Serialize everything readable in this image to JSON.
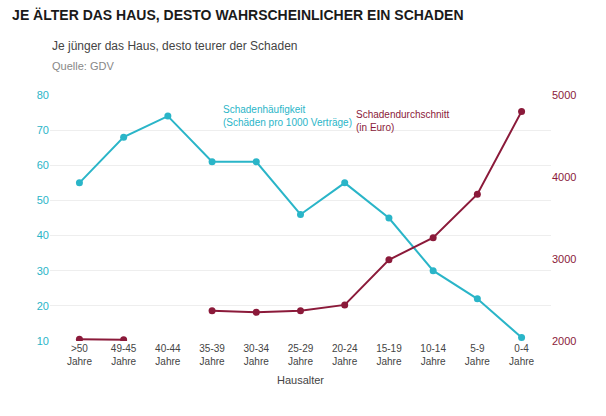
{
  "chart_data": {
    "type": "line",
    "title": "JE ÄLTER DAS HAUS, DESTO WAHRSCHEINLICHER EIN SCHADEN",
    "subtitle": "Je jünger das Haus, desto teurer der Schaden",
    "source": "Quelle: GDV",
    "xlabel": "Hausalter",
    "categories": [
      ">50\nJahre",
      "49-45\nJahre",
      "40-44\nJahre",
      "35-39\nJahre",
      "30-34\nJahre",
      "25-29\nJahre",
      "20-24\nJahre",
      "15-19\nJahre",
      "10-14\nJahre",
      "5-9\nJahre",
      "0-4\nJahre"
    ],
    "series": [
      {
        "name": "Schadenhäufigkeit\n(Schäden pro 1000 Verträge)",
        "color": "#2ab5c8",
        "values": [
          55,
          68,
          74,
          61,
          61,
          46,
          55,
          45,
          30,
          22,
          11
        ]
      },
      {
        "name": "Schadendurchschnitt\n(in Euro)",
        "color": "#8b1a3a",
        "axis": "y2",
        "values": [
          2020,
          2015,
          null,
          2370,
          2350,
          2370,
          2440,
          2990,
          3260,
          3790,
          4800
        ]
      }
    ],
    "ylim": [
      10,
      80
    ],
    "yticks": [
      10,
      20,
      30,
      40,
      50,
      60,
      70,
      80
    ],
    "y2lim": [
      2000,
      5000
    ],
    "y2ticks": [
      2000,
      3000,
      4000,
      5000
    ],
    "grid": true
  }
}
